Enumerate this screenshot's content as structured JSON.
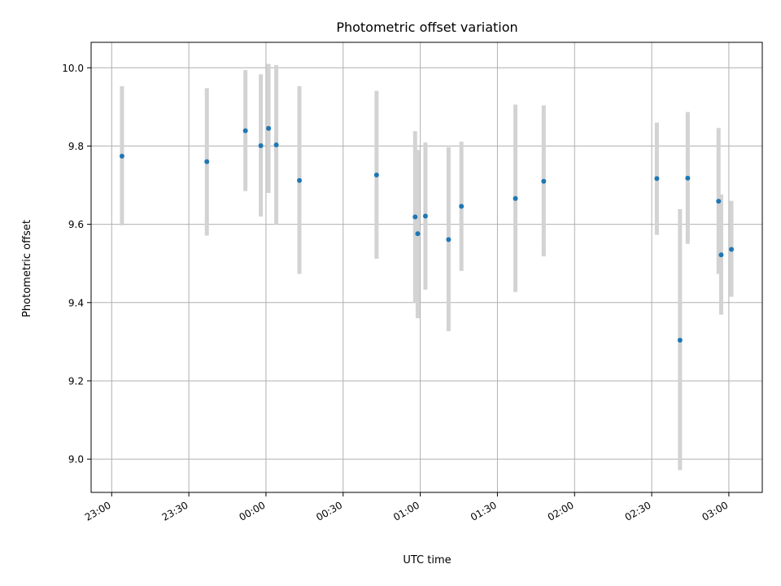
{
  "chart_data": {
    "type": "scatter",
    "title": "Photometric offset variation",
    "xlabel": "UTC time",
    "ylabel": "Photometric offset",
    "x_ticks": [
      "23:00",
      "23:30",
      "00:00",
      "00:30",
      "01:00",
      "01:30",
      "02:00",
      "02:30",
      "03:00"
    ],
    "y_ticks": [
      "9.0",
      "9.2",
      "9.4",
      "9.6",
      "9.8",
      "10.0"
    ],
    "xlim": [
      "22:52",
      "03:13"
    ],
    "ylim": [
      8.915,
      10.065
    ],
    "grid": true,
    "series": [
      {
        "marker_color": "#1f77b4",
        "errorbar_color": "#d3d3d3",
        "points": [
          {
            "x": "23:04",
            "y": 9.774,
            "yerr_low": 9.597,
            "yerr_high": 9.953
          },
          {
            "x": "23:37",
            "y": 9.76,
            "yerr_low": 9.571,
            "yerr_high": 9.948
          },
          {
            "x": "23:52",
            "y": 9.839,
            "yerr_low": 9.685,
            "yerr_high": 9.994
          },
          {
            "x": "23:58",
            "y": 9.801,
            "yerr_low": 9.62,
            "yerr_high": 9.983
          },
          {
            "x": "00:01",
            "y": 9.845,
            "yerr_low": 9.68,
            "yerr_high": 10.01
          },
          {
            "x": "00:04",
            "y": 9.803,
            "yerr_low": 9.6,
            "yerr_high": 10.007
          },
          {
            "x": "00:13",
            "y": 9.712,
            "yerr_low": 9.473,
            "yerr_high": 9.953
          },
          {
            "x": "00:43",
            "y": 9.726,
            "yerr_low": 9.512,
            "yerr_high": 9.941
          },
          {
            "x": "00:58",
            "y": 9.619,
            "yerr_low": 9.4,
            "yerr_high": 9.838
          },
          {
            "x": "00:59",
            "y": 9.576,
            "yerr_low": 9.36,
            "yerr_high": 9.79
          },
          {
            "x": "01:02",
            "y": 9.621,
            "yerr_low": 9.433,
            "yerr_high": 9.809
          },
          {
            "x": "01:11",
            "y": 9.561,
            "yerr_low": 9.327,
            "yerr_high": 9.797
          },
          {
            "x": "01:16",
            "y": 9.646,
            "yerr_low": 9.481,
            "yerr_high": 9.811
          },
          {
            "x": "01:37",
            "y": 9.666,
            "yerr_low": 9.427,
            "yerr_high": 9.906
          },
          {
            "x": "01:48",
            "y": 9.71,
            "yerr_low": 9.518,
            "yerr_high": 9.904
          },
          {
            "x": "02:32",
            "y": 9.717,
            "yerr_low": 9.573,
            "yerr_high": 9.86
          },
          {
            "x": "02:41",
            "y": 9.304,
            "yerr_low": 8.972,
            "yerr_high": 9.639
          },
          {
            "x": "02:44",
            "y": 9.718,
            "yerr_low": 9.55,
            "yerr_high": 9.887
          },
          {
            "x": "02:56",
            "y": 9.659,
            "yerr_low": 9.473,
            "yerr_high": 9.846
          },
          {
            "x": "02:57",
            "y": 9.522,
            "yerr_low": 9.369,
            "yerr_high": 9.676
          },
          {
            "x": "03:01",
            "y": 9.536,
            "yerr_low": 9.415,
            "yerr_high": 9.66
          }
        ]
      }
    ]
  }
}
